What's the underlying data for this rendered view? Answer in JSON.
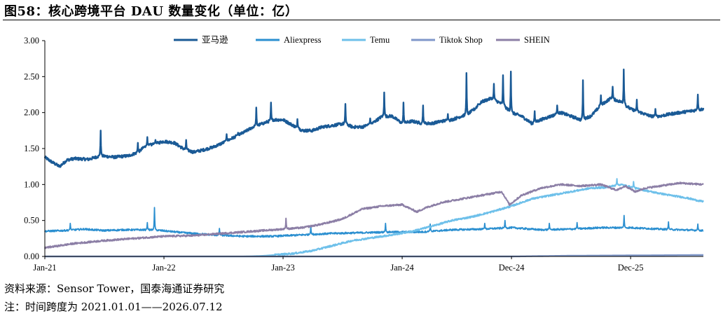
{
  "page": {
    "title": "图58：核心跨境平台 DAU 数量变化（单位：亿）",
    "source": "资料来源：Sensor Tower，国泰海通证券研究",
    "note": "注：时间跨度为 2021.01.01——2026.07.12"
  },
  "chart_data": {
    "type": "line",
    "title": "",
    "xlabel": "",
    "ylabel": "",
    "x_range": [
      "2021-01-01",
      "2026-07-12"
    ],
    "x_ticks": [
      "Jan-21",
      "Jan-22",
      "Jan-23",
      "Jan-24",
      "Dec-24",
      "Dec-25"
    ],
    "x_tick_dates": [
      "2021-01-01",
      "2022-01-01",
      "2023-01-01",
      "2024-01-01",
      "2024-12-01",
      "2025-12-01"
    ],
    "ylim": [
      0,
      3
    ],
    "y_ticks": [
      "0.00",
      "0.50",
      "1.00",
      "1.50",
      "2.00",
      "2.50",
      "3.00"
    ],
    "grid": false,
    "legend_position": "top",
    "series": [
      {
        "name": "亚马逊",
        "color": "#1a5a96",
        "width": 2.4,
        "noise": 0.02,
        "points": [
          [
            "2021-01-01",
            1.38
          ],
          [
            "2021-01-20",
            1.32
          ],
          [
            "2021-02-15",
            1.25
          ],
          [
            "2021-03-10",
            1.34
          ],
          [
            "2021-04-01",
            1.36
          ],
          [
            "2021-05-15",
            1.35
          ],
          [
            "2021-06-21",
            1.4
          ],
          [
            "2021-08-01",
            1.38
          ],
          [
            "2021-09-15",
            1.4
          ],
          [
            "2021-10-15",
            1.45
          ],
          [
            "2021-11-01",
            1.52
          ],
          [
            "2021-11-20",
            1.55
          ],
          [
            "2021-12-15",
            1.58
          ],
          [
            "2022-01-01",
            1.6
          ],
          [
            "2022-02-01",
            1.58
          ],
          [
            "2022-03-01",
            1.5
          ],
          [
            "2022-04-01",
            1.45
          ],
          [
            "2022-05-01",
            1.48
          ],
          [
            "2022-06-01",
            1.52
          ],
          [
            "2022-07-01",
            1.58
          ],
          [
            "2022-08-01",
            1.65
          ],
          [
            "2022-09-01",
            1.72
          ],
          [
            "2022-10-01",
            1.8
          ],
          [
            "2022-11-01",
            1.85
          ],
          [
            "2022-12-01",
            1.9
          ],
          [
            "2023-01-01",
            1.9
          ],
          [
            "2023-02-01",
            1.82
          ],
          [
            "2023-03-01",
            1.75
          ],
          [
            "2023-04-01",
            1.75
          ],
          [
            "2023-05-01",
            1.8
          ],
          [
            "2023-06-01",
            1.82
          ],
          [
            "2023-07-10",
            1.85
          ],
          [
            "2023-08-01",
            1.8
          ],
          [
            "2023-09-01",
            1.8
          ],
          [
            "2023-10-01",
            1.85
          ],
          [
            "2023-11-01",
            1.95
          ],
          [
            "2023-12-01",
            1.95
          ],
          [
            "2024-01-01",
            1.85
          ],
          [
            "2024-02-01",
            1.88
          ],
          [
            "2024-03-01",
            1.85
          ],
          [
            "2024-04-01",
            1.85
          ],
          [
            "2024-05-01",
            1.88
          ],
          [
            "2024-06-01",
            1.9
          ],
          [
            "2024-07-01",
            1.95
          ],
          [
            "2024-07-20",
            1.98
          ],
          [
            "2024-08-10",
            2.05
          ],
          [
            "2024-09-01",
            2.15
          ],
          [
            "2024-10-01",
            2.2
          ],
          [
            "2024-11-01",
            2.12
          ],
          [
            "2024-12-01",
            2.0
          ],
          [
            "2025-01-01",
            1.95
          ],
          [
            "2025-02-01",
            1.85
          ],
          [
            "2025-03-01",
            1.9
          ],
          [
            "2025-04-01",
            1.95
          ],
          [
            "2025-05-01",
            2.0
          ],
          [
            "2025-06-01",
            1.95
          ],
          [
            "2025-07-01",
            1.9
          ],
          [
            "2025-08-01",
            1.95
          ],
          [
            "2025-09-01",
            2.1
          ],
          [
            "2025-10-01",
            2.2
          ],
          [
            "2025-11-01",
            2.15
          ],
          [
            "2025-12-01",
            2.05
          ],
          [
            "2026-01-01",
            2.0
          ],
          [
            "2026-02-01",
            1.95
          ],
          [
            "2026-03-01",
            1.95
          ],
          [
            "2026-04-01",
            1.98
          ],
          [
            "2026-05-01",
            2.0
          ],
          [
            "2026-06-01",
            2.02
          ],
          [
            "2026-07-12",
            2.05
          ]
        ],
        "spikes": [
          [
            "2021-06-21",
            1.75
          ],
          [
            "2021-10-13",
            1.58
          ],
          [
            "2021-11-11",
            1.66
          ],
          [
            "2021-12-06",
            1.62
          ],
          [
            "2022-03-10",
            1.62
          ],
          [
            "2022-07-12",
            1.7
          ],
          [
            "2022-08-16",
            1.72
          ],
          [
            "2022-10-11",
            2.07
          ],
          [
            "2022-11-25",
            2.14
          ],
          [
            "2023-02-14",
            1.91
          ],
          [
            "2023-07-11",
            2.12
          ],
          [
            "2023-09-25",
            1.92
          ],
          [
            "2023-11-07",
            2.28
          ],
          [
            "2024-01-05",
            2.14
          ],
          [
            "2024-03-05",
            2.1
          ],
          [
            "2024-05-20",
            1.98
          ],
          [
            "2024-07-16",
            2.55
          ],
          [
            "2024-08-25",
            2.1
          ],
          [
            "2024-10-08",
            2.4
          ],
          [
            "2024-11-05",
            2.52
          ],
          [
            "2024-11-29",
            2.57
          ],
          [
            "2025-02-10",
            2.02
          ],
          [
            "2025-04-20",
            2.1
          ],
          [
            "2025-07-08",
            2.45
          ],
          [
            "2025-09-01",
            2.24
          ],
          [
            "2025-10-07",
            2.36
          ],
          [
            "2025-11-10",
            2.6
          ],
          [
            "2025-12-20",
            2.18
          ],
          [
            "2026-02-15",
            2.05
          ],
          [
            "2026-06-25",
            2.25
          ]
        ]
      },
      {
        "name": "Aliexpress",
        "color": "#2b8fd0",
        "width": 1.8,
        "noise": 0.012,
        "points": [
          [
            "2021-01-01",
            0.35
          ],
          [
            "2021-03-01",
            0.36
          ],
          [
            "2021-05-01",
            0.38
          ],
          [
            "2021-07-01",
            0.36
          ],
          [
            "2021-09-01",
            0.37
          ],
          [
            "2021-12-01",
            0.37
          ],
          [
            "2022-03-01",
            0.33
          ],
          [
            "2022-06-01",
            0.3
          ],
          [
            "2022-09-01",
            0.28
          ],
          [
            "2022-12-01",
            0.28
          ],
          [
            "2023-03-01",
            0.3
          ],
          [
            "2023-06-01",
            0.32
          ],
          [
            "2023-09-01",
            0.33
          ],
          [
            "2023-12-01",
            0.34
          ],
          [
            "2024-03-01",
            0.34
          ],
          [
            "2024-06-01",
            0.37
          ],
          [
            "2024-09-01",
            0.38
          ],
          [
            "2024-12-01",
            0.4
          ],
          [
            "2025-03-01",
            0.37
          ],
          [
            "2025-06-01",
            0.38
          ],
          [
            "2025-09-01",
            0.4
          ],
          [
            "2025-12-01",
            0.4
          ],
          [
            "2026-03-01",
            0.38
          ],
          [
            "2026-07-12",
            0.36
          ]
        ],
        "spikes": [
          [
            "2021-03-20",
            0.46
          ],
          [
            "2021-11-11",
            0.47
          ],
          [
            "2021-12-03",
            0.68
          ],
          [
            "2022-06-20",
            0.39
          ],
          [
            "2023-03-27",
            0.42
          ],
          [
            "2023-11-11",
            0.46
          ],
          [
            "2024-03-27",
            0.45
          ],
          [
            "2024-09-10",
            0.46
          ],
          [
            "2024-11-11",
            0.5
          ],
          [
            "2025-03-27",
            0.46
          ],
          [
            "2025-06-20",
            0.47
          ],
          [
            "2025-11-11",
            0.57
          ],
          [
            "2026-03-27",
            0.48
          ],
          [
            "2026-06-25",
            0.45
          ]
        ]
      },
      {
        "name": "Temu",
        "color": "#6ec0ea",
        "width": 2.0,
        "noise": 0.012,
        "points": [
          [
            "2021-01-01",
            0.0
          ],
          [
            "2022-09-01",
            0.0
          ],
          [
            "2022-11-01",
            0.01
          ],
          [
            "2023-01-01",
            0.03
          ],
          [
            "2023-02-01",
            0.04
          ],
          [
            "2023-04-01",
            0.08
          ],
          [
            "2023-06-01",
            0.15
          ],
          [
            "2023-08-01",
            0.22
          ],
          [
            "2023-10-01",
            0.26
          ],
          [
            "2023-12-01",
            0.3
          ],
          [
            "2024-02-01",
            0.35
          ],
          [
            "2024-04-01",
            0.42
          ],
          [
            "2024-06-01",
            0.5
          ],
          [
            "2024-08-01",
            0.55
          ],
          [
            "2024-10-01",
            0.62
          ],
          [
            "2024-12-01",
            0.7
          ],
          [
            "2025-02-01",
            0.8
          ],
          [
            "2025-04-01",
            0.85
          ],
          [
            "2025-06-01",
            0.9
          ],
          [
            "2025-08-01",
            0.95
          ],
          [
            "2025-09-15",
            0.96
          ],
          [
            "2025-11-01",
            1.0
          ],
          [
            "2025-12-15",
            0.95
          ],
          [
            "2026-02-01",
            0.9
          ],
          [
            "2026-04-01",
            0.85
          ],
          [
            "2026-05-15",
            0.82
          ],
          [
            "2026-07-12",
            0.76
          ]
        ],
        "spikes": [
          [
            "2025-10-20",
            1.08
          ],
          [
            "2025-12-10",
            1.04
          ]
        ]
      },
      {
        "name": "Tiktok Shop",
        "color": "#7f97c9",
        "width": 2.4,
        "noise": 0.0,
        "points": [
          [
            "2021-01-01",
            0.0
          ],
          [
            "2024-12-01",
            0.0
          ],
          [
            "2025-06-01",
            0.01
          ],
          [
            "2026-07-12",
            0.02
          ]
        ],
        "spikes": []
      },
      {
        "name": "SHEIN",
        "color": "#8c7fa6",
        "width": 2.0,
        "noise": 0.012,
        "points": [
          [
            "2021-01-01",
            0.12
          ],
          [
            "2021-04-01",
            0.18
          ],
          [
            "2021-07-01",
            0.22
          ],
          [
            "2021-10-01",
            0.25
          ],
          [
            "2022-01-01",
            0.28
          ],
          [
            "2022-04-01",
            0.29
          ],
          [
            "2022-07-01",
            0.32
          ],
          [
            "2022-10-01",
            0.35
          ],
          [
            "2023-01-01",
            0.38
          ],
          [
            "2023-03-01",
            0.4
          ],
          [
            "2023-05-01",
            0.45
          ],
          [
            "2023-07-01",
            0.52
          ],
          [
            "2023-09-01",
            0.66
          ],
          [
            "2023-11-01",
            0.7
          ],
          [
            "2024-01-01",
            0.72
          ],
          [
            "2024-02-15",
            0.62
          ],
          [
            "2024-03-15",
            0.68
          ],
          [
            "2024-05-01",
            0.75
          ],
          [
            "2024-07-01",
            0.8
          ],
          [
            "2024-09-01",
            0.85
          ],
          [
            "2024-11-01",
            0.9
          ],
          [
            "2024-11-25",
            0.72
          ],
          [
            "2025-01-01",
            0.85
          ],
          [
            "2025-03-01",
            0.95
          ],
          [
            "2025-05-01",
            1.0
          ],
          [
            "2025-07-01",
            0.98
          ],
          [
            "2025-09-01",
            1.0
          ],
          [
            "2025-10-20",
            0.92
          ],
          [
            "2025-11-15",
            0.98
          ],
          [
            "2025-12-15",
            0.9
          ],
          [
            "2026-01-15",
            0.95
          ],
          [
            "2026-03-01",
            0.98
          ],
          [
            "2026-05-01",
            1.02
          ],
          [
            "2026-07-12",
            1.0
          ]
        ],
        "spikes": [
          [
            "2023-01-10",
            0.53
          ],
          [
            "2025-10-25",
            0.75
          ]
        ]
      }
    ]
  }
}
